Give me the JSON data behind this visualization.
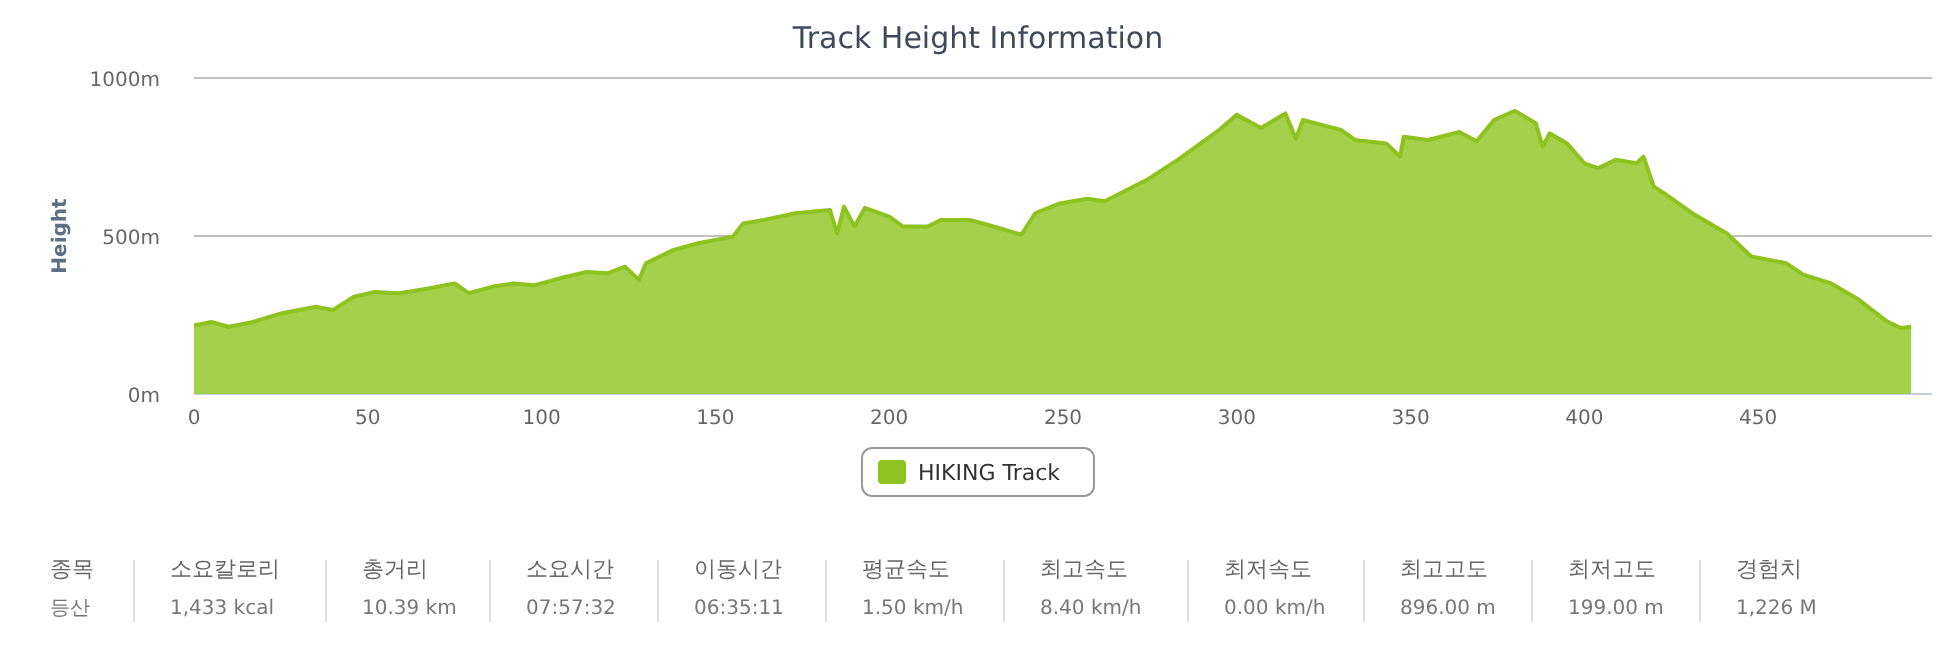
{
  "chart_data": {
    "type": "area",
    "title": "Track Height Information",
    "ylabel": "Height",
    "x": [
      0,
      5,
      10,
      17,
      25,
      35,
      40,
      46,
      52,
      59,
      67,
      75,
      79,
      86,
      92,
      98,
      107,
      113,
      119,
      124,
      128,
      130,
      138,
      145,
      155,
      158,
      164,
      173,
      183,
      185,
      187,
      190,
      193,
      200,
      204,
      211,
      215,
      223,
      227,
      230,
      238,
      242,
      249,
      257,
      262,
      274,
      283,
      295,
      300,
      307,
      314,
      317,
      319,
      330,
      334,
      343,
      347,
      348,
      355,
      364,
      369,
      374,
      380,
      386,
      388,
      390,
      395,
      400,
      404,
      409,
      415,
      417,
      420,
      423,
      431,
      441,
      448,
      458,
      463,
      471,
      479,
      487,
      491,
      494
    ],
    "series": [
      {
        "name": "HIKING Track",
        "color": "#8dc21f",
        "values": [
          217,
          228,
          213,
          228,
          255,
          276,
          266,
          308,
          323,
          319,
          333,
          350,
          319,
          340,
          350,
          344,
          371,
          386,
          382,
          403,
          361,
          414,
          456,
          477,
          498,
          540,
          551,
          572,
          582,
          508,
          593,
          530,
          589,
          561,
          530,
          530,
          551,
          551,
          540,
          530,
          504,
          572,
          603,
          618,
          610,
          677,
          741,
          836,
          884,
          842,
          888,
          808,
          867,
          836,
          804,
          793,
          751,
          814,
          804,
          829,
          800,
          867,
          896,
          857,
          783,
          825,
          793,
          730,
          715,
          741,
          730,
          751,
          656,
          635,
          572,
          508,
          435,
          414,
          378,
          350,
          298,
          230,
          209,
          213
        ]
      }
    ],
    "xlim": [
      0,
      500
    ],
    "ylim": [
      0,
      1000
    ],
    "xticks": [
      0,
      50,
      100,
      150,
      200,
      250,
      300,
      350,
      400,
      450
    ],
    "yticks": [
      {
        "value": 0,
        "label": "0m"
      },
      {
        "value": 500,
        "label": "500m"
      },
      {
        "value": 1000,
        "label": "1000m"
      }
    ],
    "grid": "y",
    "legend": "bottom",
    "marker": "none",
    "annotations": [
      "종목",
      "등산",
      "소요칼로리",
      "1,433 kcal",
      "총거리",
      "10.39 km",
      "소요시간",
      "07:57:32",
      "이동시간",
      "06:35:11",
      "평균속도",
      "1.50 km/h",
      "최고속도",
      "8.40 km/h",
      "최저속도",
      "0.00 km/h",
      "최고고도",
      "896.00 m",
      "최저고도",
      "199.00 m",
      "경험치",
      "1,226 M"
    ]
  }
}
